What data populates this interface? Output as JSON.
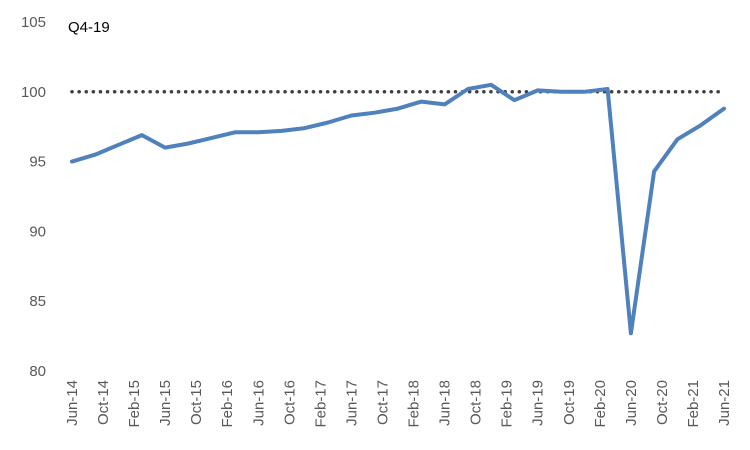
{
  "chart_data": {
    "type": "line",
    "annotation": "Q4-19",
    "ylim": [
      80,
      105
    ],
    "yticks": [
      80,
      85,
      90,
      95,
      100,
      105
    ],
    "x_tick_labels": [
      "Jun-14",
      "Oct-14",
      "Feb-15",
      "Jun-15",
      "Oct-15",
      "Feb-16",
      "Jun-16",
      "Oct-16",
      "Feb-17",
      "Jun-17",
      "Oct-17",
      "Feb-18",
      "Jun-18",
      "Oct-18",
      "Feb-19",
      "Jun-19",
      "Oct-19",
      "Feb-20",
      "Jun-20",
      "Oct-20",
      "Feb-21",
      "Jun-21"
    ],
    "reference_line": {
      "value": 100,
      "style": "dotted",
      "color": "#404040"
    },
    "series": [
      {
        "color": "#4F81BD",
        "x": [
          "Jun-14",
          "Sep-14",
          "Dec-14",
          "Mar-15",
          "Jun-15",
          "Sep-15",
          "Dec-15",
          "Mar-16",
          "Jun-16",
          "Sep-16",
          "Dec-16",
          "Mar-17",
          "Jun-17",
          "Sep-17",
          "Dec-17",
          "Mar-18",
          "Jun-18",
          "Sep-18",
          "Dec-18",
          "Mar-19",
          "Jun-19",
          "Sep-19",
          "Dec-19",
          "Mar-20",
          "Jun-20",
          "Sep-20",
          "Dec-20",
          "Mar-21",
          "Jun-21"
        ],
        "values": [
          95.0,
          95.5,
          96.2,
          96.9,
          96.0,
          96.3,
          96.7,
          97.1,
          97.1,
          97.2,
          97.4,
          97.8,
          98.3,
          98.5,
          98.8,
          99.3,
          99.1,
          100.2,
          100.5,
          99.4,
          100.1,
          100.0,
          100.0,
          100.2,
          82.7,
          94.3,
          96.6,
          97.6,
          98.8
        ]
      }
    ]
  }
}
